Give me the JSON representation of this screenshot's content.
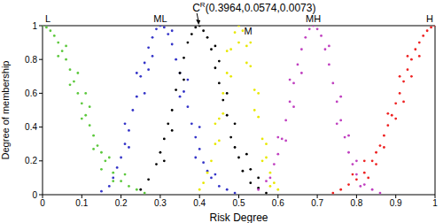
{
  "chart_data": {
    "type": "scatter",
    "xlabel": "Risk Degree",
    "ylabel": "Degree of membership",
    "xlim": [
      0,
      1
    ],
    "ylim": [
      0,
      1
    ],
    "xticks": [
      0,
      0.1,
      0.2,
      0.3,
      0.4,
      0.5,
      0.6,
      0.7,
      0.8,
      0.9,
      1
    ],
    "yticks": [
      0,
      0.2,
      0.4,
      0.6,
      0.8,
      1
    ],
    "grid": false,
    "series": [
      {
        "name": "L",
        "color": "#5cc83c",
        "x": [
          0.0,
          0.01,
          0.02,
          0.03,
          0.04,
          0.05,
          0.06,
          0.07,
          0.08,
          0.09,
          0.1,
          0.11,
          0.12,
          0.13,
          0.14,
          0.15,
          0.16,
          0.18,
          0.2,
          0.22,
          0.24,
          0.26,
          0.04,
          0.06,
          0.07,
          0.09,
          0.1,
          0.12,
          0.13,
          0.15,
          0.17,
          0.18,
          0.11,
          0.21
        ],
        "values": [
          1.0,
          0.99,
          0.97,
          0.94,
          0.9,
          0.85,
          0.8,
          0.74,
          0.67,
          0.6,
          0.54,
          0.47,
          0.41,
          0.35,
          0.29,
          0.25,
          0.2,
          0.13,
          0.08,
          0.05,
          0.03,
          0.01,
          0.82,
          0.88,
          0.65,
          0.72,
          0.45,
          0.52,
          0.27,
          0.15,
          0.22,
          0.08,
          0.6,
          0.12
        ]
      },
      {
        "name": "ML",
        "color": "#3434c8",
        "x": [
          0.15,
          0.17,
          0.18,
          0.19,
          0.2,
          0.21,
          0.22,
          0.23,
          0.24,
          0.25,
          0.26,
          0.27,
          0.28,
          0.29,
          0.3,
          0.31,
          0.32,
          0.33,
          0.34,
          0.35,
          0.36,
          0.37,
          0.38,
          0.39,
          0.4,
          0.41,
          0.42,
          0.43,
          0.45,
          0.47,
          0.49,
          0.22,
          0.24,
          0.26,
          0.27,
          0.35,
          0.37,
          0.39,
          0.4,
          0.21,
          0.44,
          0.28,
          0.33
        ],
        "values": [
          0.02,
          0.05,
          0.1,
          0.16,
          0.22,
          0.3,
          0.38,
          0.5,
          0.58,
          0.7,
          0.78,
          0.87,
          0.93,
          0.98,
          1.0,
          0.99,
          0.95,
          0.89,
          0.8,
          0.72,
          0.61,
          0.52,
          0.42,
          0.34,
          0.27,
          0.19,
          0.14,
          0.1,
          0.05,
          0.03,
          0.01,
          0.28,
          0.72,
          0.6,
          0.74,
          0.58,
          0.68,
          0.22,
          0.4,
          0.42,
          0.12,
          0.82,
          0.97
        ]
      },
      {
        "name": "C",
        "name_superscript": "R",
        "name_suffix": "(0.3964,0.0574,0.0073)",
        "color": "#000000",
        "x": [
          0.25,
          0.27,
          0.29,
          0.3,
          0.31,
          0.32,
          0.33,
          0.34,
          0.35,
          0.36,
          0.37,
          0.38,
          0.39,
          0.4,
          0.41,
          0.42,
          0.43,
          0.44,
          0.45,
          0.46,
          0.47,
          0.48,
          0.49,
          0.5,
          0.51,
          0.53,
          0.55,
          0.57,
          0.36,
          0.44,
          0.47,
          0.49,
          0.33,
          0.52,
          0.31,
          0.45,
          0.53,
          0.55
        ],
        "values": [
          0.03,
          0.09,
          0.18,
          0.25,
          0.33,
          0.42,
          0.5,
          0.62,
          0.72,
          0.81,
          0.9,
          0.95,
          0.99,
          1.0,
          0.97,
          0.93,
          0.86,
          0.75,
          0.66,
          0.56,
          0.47,
          0.34,
          0.28,
          0.22,
          0.14,
          0.07,
          0.04,
          0.01,
          0.68,
          0.88,
          0.6,
          0.42,
          0.38,
          0.24,
          0.2,
          0.79,
          0.15,
          0.1
        ]
      },
      {
        "name": "M",
        "color": "#e8e800",
        "x": [
          0.4,
          0.41,
          0.42,
          0.43,
          0.44,
          0.45,
          0.46,
          0.47,
          0.48,
          0.49,
          0.5,
          0.51,
          0.52,
          0.53,
          0.54,
          0.55,
          0.56,
          0.57,
          0.58,
          0.59,
          0.6,
          0.44,
          0.46,
          0.47,
          0.48,
          0.52,
          0.53,
          0.54,
          0.55,
          0.56,
          0.57,
          0.45,
          0.58,
          0.5
        ],
        "values": [
          0.03,
          0.07,
          0.13,
          0.2,
          0.3,
          0.45,
          0.6,
          0.72,
          0.86,
          0.96,
          1.0,
          0.97,
          0.88,
          0.76,
          0.62,
          0.46,
          0.33,
          0.22,
          0.13,
          0.07,
          0.03,
          0.42,
          0.48,
          0.85,
          0.7,
          0.78,
          0.9,
          0.5,
          0.6,
          0.2,
          0.3,
          0.32,
          0.05,
          0.9
        ]
      },
      {
        "name": "MH",
        "color": "#c040c0",
        "x": [
          0.55,
          0.57,
          0.59,
          0.6,
          0.61,
          0.62,
          0.63,
          0.64,
          0.65,
          0.66,
          0.67,
          0.68,
          0.69,
          0.7,
          0.71,
          0.72,
          0.73,
          0.74,
          0.75,
          0.76,
          0.77,
          0.78,
          0.79,
          0.8,
          0.82,
          0.84,
          0.86,
          0.6,
          0.62,
          0.64,
          0.66,
          0.73,
          0.75,
          0.76,
          0.78,
          0.8,
          0.81,
          0.63,
          0.58
        ],
        "values": [
          0.03,
          0.08,
          0.18,
          0.24,
          0.33,
          0.44,
          0.55,
          0.66,
          0.77,
          0.86,
          0.93,
          0.98,
          1.0,
          0.98,
          0.94,
          0.86,
          0.77,
          0.66,
          0.55,
          0.44,
          0.34,
          0.25,
          0.18,
          0.12,
          0.06,
          0.03,
          0.01,
          0.34,
          0.32,
          0.52,
          0.72,
          0.88,
          0.42,
          0.58,
          0.35,
          0.2,
          0.05,
          0.68,
          0.1
        ]
      },
      {
        "name": "H",
        "color": "#ee2222",
        "x": [
          0.74,
          0.76,
          0.78,
          0.8,
          0.82,
          0.84,
          0.85,
          0.86,
          0.87,
          0.88,
          0.89,
          0.9,
          0.91,
          0.92,
          0.93,
          0.94,
          0.95,
          0.96,
          0.97,
          0.98,
          0.99,
          1.0,
          0.83,
          0.85,
          0.87,
          0.88,
          0.9,
          0.91,
          0.92,
          0.93,
          0.94,
          0.96,
          0.82,
          0.79
        ],
        "values": [
          0.01,
          0.03,
          0.06,
          0.09,
          0.13,
          0.2,
          0.25,
          0.29,
          0.35,
          0.41,
          0.47,
          0.54,
          0.6,
          0.67,
          0.74,
          0.8,
          0.86,
          0.9,
          0.94,
          0.97,
          0.99,
          1.0,
          0.1,
          0.18,
          0.28,
          0.48,
          0.45,
          0.7,
          0.55,
          0.82,
          0.7,
          0.82,
          0.2,
          0.12
        ]
      }
    ]
  }
}
